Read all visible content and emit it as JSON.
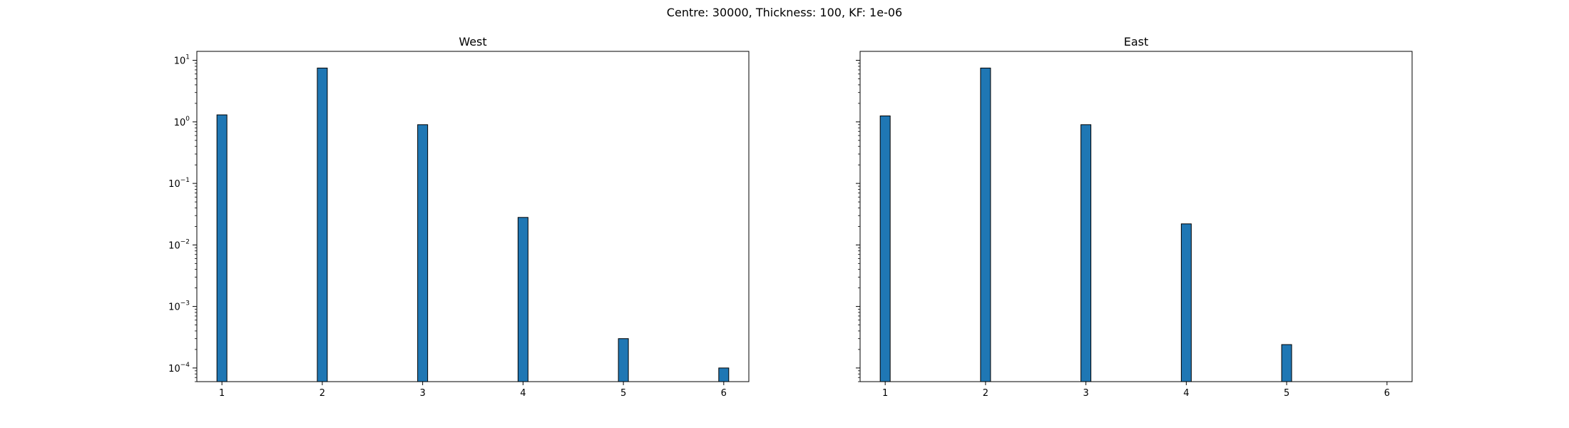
{
  "figure": {
    "suptitle": "Centre: 30000, Thickness: 100, KF: 1e-06"
  },
  "chart_data": [
    {
      "type": "bar",
      "title": "West",
      "xlabel": "",
      "ylabel": "",
      "yscale": "log",
      "categories": [
        1,
        2,
        3,
        4,
        5,
        6
      ],
      "values": [
        1.3,
        7.5,
        0.9,
        0.028,
        0.0003,
        0.0001
      ],
      "xlim": [
        0.75,
        6.25
      ],
      "ylim": [
        6e-05,
        14
      ],
      "xticks": [
        "1",
        "2",
        "3",
        "4",
        "5",
        "6"
      ],
      "yticks": [
        {
          "base": "10",
          "exp": "1",
          "value": 10
        },
        {
          "base": "10",
          "exp": "0",
          "value": 1
        },
        {
          "base": "10",
          "exp": "−1",
          "value": 0.1
        },
        {
          "base": "10",
          "exp": "−2",
          "value": 0.01
        },
        {
          "base": "10",
          "exp": "−3",
          "value": 0.001
        },
        {
          "base": "10",
          "exp": "−4",
          "value": 0.0001
        }
      ],
      "show_ytick_labels": true,
      "bar_color": "#1f77b4",
      "edge_color": "#000000",
      "grid": false
    },
    {
      "type": "bar",
      "title": "East",
      "xlabel": "",
      "ylabel": "",
      "yscale": "log",
      "categories": [
        1,
        2,
        3,
        4,
        5,
        6
      ],
      "values": [
        1.25,
        7.5,
        0.9,
        0.022,
        0.00024,
        null
      ],
      "xlim": [
        0.75,
        6.25
      ],
      "ylim": [
        6e-05,
        14
      ],
      "xticks": [
        "1",
        "2",
        "3",
        "4",
        "5",
        "6"
      ],
      "yticks": [
        {
          "value": 10
        },
        {
          "value": 1
        },
        {
          "value": 0.1
        },
        {
          "value": 0.01
        },
        {
          "value": 0.001
        },
        {
          "value": 0.0001
        }
      ],
      "show_ytick_labels": false,
      "bar_color": "#1f77b4",
      "edge_color": "#000000",
      "grid": false
    }
  ]
}
